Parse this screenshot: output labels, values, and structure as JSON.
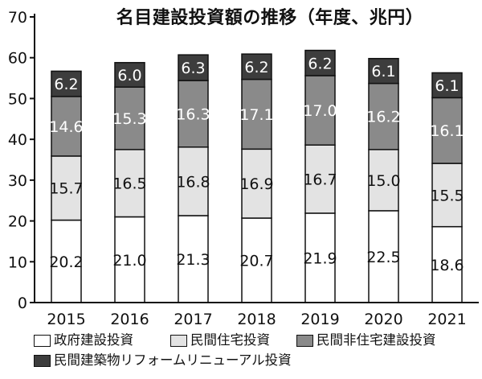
{
  "chart_data": {
    "type": "bar",
    "stacked": true,
    "title": "名目建設投資額の推移（年度、兆円）",
    "xlabel": "",
    "ylabel": "",
    "ylim": [
      0,
      70
    ],
    "yticks": [
      0,
      10,
      20,
      30,
      40,
      50,
      60,
      70
    ],
    "grid": false,
    "legend_position": "bottom",
    "categories": [
      "2015",
      "2016",
      "2017",
      "2018",
      "2019",
      "2020",
      "2021"
    ],
    "series": [
      {
        "name": "政府建設投資",
        "color": "#ffffff",
        "label_color": "#111111",
        "values": [
          20.2,
          21.0,
          21.3,
          20.7,
          21.9,
          22.5,
          18.6
        ]
      },
      {
        "name": "民間住宅投資",
        "color": "#e3e3e3",
        "label_color": "#111111",
        "values": [
          15.7,
          16.5,
          16.8,
          16.9,
          16.7,
          15.0,
          15.5
        ]
      },
      {
        "name": "民間非住宅建設投資",
        "color": "#8a8a8a",
        "label_color": "#ffffff",
        "values": [
          14.6,
          15.3,
          16.3,
          17.1,
          17.0,
          16.2,
          16.1
        ]
      },
      {
        "name": "民間建築物リフォームリニューアル投資",
        "color": "#3d3d3d",
        "label_color": "#ffffff",
        "values": [
          6.2,
          6.0,
          6.3,
          6.2,
          6.2,
          6.1,
          6.1
        ]
      }
    ]
  }
}
